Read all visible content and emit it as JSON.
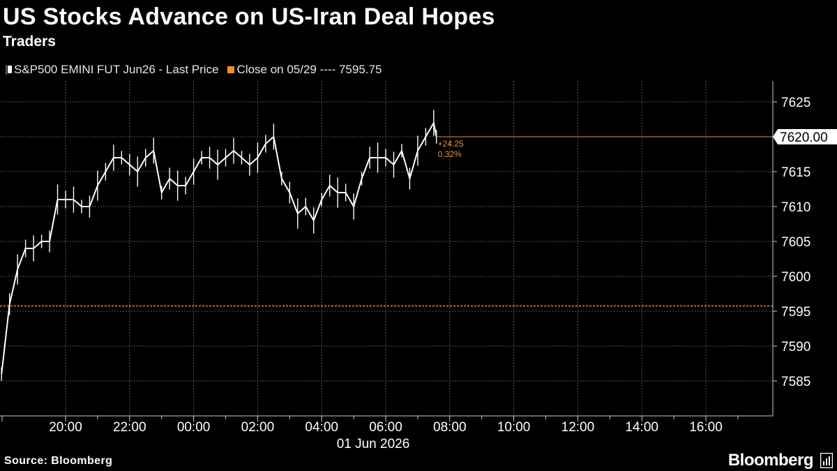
{
  "header": {
    "title": "US Stocks Advance on US-Iran Deal Hopes",
    "subtitle": "Traders"
  },
  "legend": {
    "series_label": "S&P500 EMINI FUT Jun26 - Last Price",
    "close_label": "Close on 05/29 ---- 7595.75"
  },
  "footer": {
    "source": "Source: Bloomberg",
    "brand": "Bloomberg"
  },
  "colors": {
    "background": "#000000",
    "series": "#ffffff",
    "accent": "#f0912a",
    "grid": "#5a5a5a"
  },
  "chart_data": {
    "type": "line",
    "title": "US Stocks Advance on US-Iran Deal Hopes",
    "subtitle": "Traders",
    "ylim": [
      7580,
      7628
    ],
    "y_ticks": [
      7585,
      7590,
      7595,
      7600,
      7605,
      7610,
      7615,
      7620,
      7625
    ],
    "x_ticks": [
      "20:00",
      "22:00",
      "00:00",
      "02:00",
      "04:00",
      "06:00",
      "08:00",
      "10:00",
      "12:00",
      "14:00",
      "16:00"
    ],
    "x_date_label": "01 Jun 2026",
    "grid": true,
    "reference_line": {
      "label": "Close on 05/29",
      "value": 7595.75
    },
    "last_price": {
      "value": "7620.00",
      "change": "+24.25",
      "change_pct": "0.32%"
    },
    "series": [
      {
        "name": "S&P500 EMINI FUT Jun26 - Last Price",
        "x": [
          "18:00",
          "18:15",
          "18:30",
          "18:45",
          "19:00",
          "19:15",
          "19:30",
          "19:45",
          "20:00",
          "20:15",
          "20:30",
          "20:45",
          "21:00",
          "21:15",
          "21:30",
          "21:45",
          "22:00",
          "22:15",
          "22:30",
          "22:45",
          "23:00",
          "23:15",
          "23:30",
          "23:45",
          "00:00",
          "00:15",
          "00:30",
          "00:45",
          "01:00",
          "01:15",
          "01:30",
          "01:45",
          "02:00",
          "02:15",
          "02:30",
          "02:45",
          "03:00",
          "03:15",
          "03:30",
          "03:45",
          "04:00",
          "04:15",
          "04:30",
          "04:45",
          "05:00",
          "05:15",
          "05:30",
          "05:45",
          "06:00",
          "06:15",
          "06:30",
          "06:45",
          "07:00",
          "07:15",
          "07:30",
          "07:35"
        ],
        "y": [
          7586,
          7596,
          7601,
          7604,
          7604,
          7605,
          7605,
          7611,
          7611,
          7611,
          7610,
          7610,
          7613,
          7615,
          7617,
          7617,
          7616,
          7615,
          7617,
          7618,
          7612,
          7614,
          7613,
          7613,
          7615,
          7617,
          7617,
          7616,
          7617,
          7618,
          7617,
          7616,
          7617,
          7619,
          7620,
          7614,
          7612,
          7609,
          7610,
          7608,
          7611,
          7613,
          7612,
          7612,
          7610,
          7614,
          7617,
          7617,
          7617,
          7616,
          7618,
          7614,
          7618,
          7620,
          7622,
          7620
        ]
      }
    ]
  }
}
